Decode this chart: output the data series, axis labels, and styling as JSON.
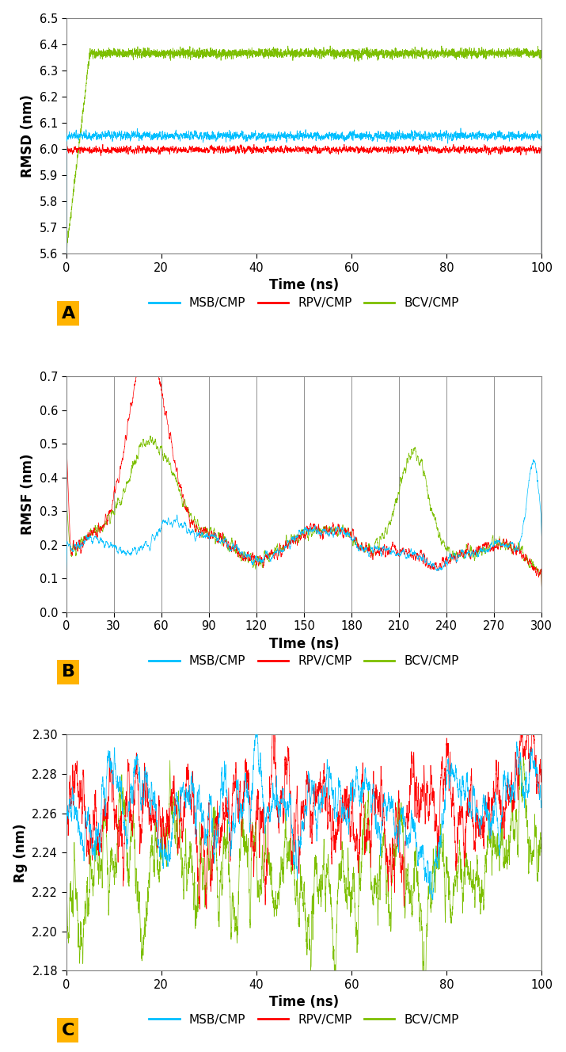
{
  "panel_A": {
    "xlabel": "Time (ns)",
    "ylabel": "RMSD (nm)",
    "xlim": [
      0,
      100
    ],
    "ylim": [
      5.6,
      6.5
    ],
    "yticks": [
      5.6,
      5.7,
      5.8,
      5.9,
      6.0,
      6.1,
      6.2,
      6.3,
      6.4,
      6.5
    ],
    "xticks": [
      0,
      20,
      40,
      60,
      80,
      100
    ],
    "blue_mean": 6.05,
    "blue_noise": 0.025,
    "red_mean": 5.997,
    "red_noise": 0.02,
    "green_start": 5.6,
    "green_plateau": 6.365,
    "green_rise_end": 5,
    "green_noise": 0.018,
    "n_points": 10000,
    "label_A": "A"
  },
  "panel_B": {
    "xlabel": "TIme (ns)",
    "ylabel": "RMSF (nm)",
    "xlim": [
      0,
      300
    ],
    "ylim": [
      0,
      0.7
    ],
    "yticks": [
      0,
      0.1,
      0.2,
      0.3,
      0.4,
      0.5,
      0.6,
      0.7
    ],
    "xticks": [
      0,
      30,
      60,
      90,
      120,
      150,
      180,
      210,
      240,
      270,
      300
    ],
    "n_points": 3000,
    "label_B": "B",
    "vlines": [
      30,
      60,
      90,
      120,
      150,
      180,
      210,
      240,
      270,
      300
    ]
  },
  "panel_C": {
    "xlabel": "Time (ns)",
    "ylabel": "Rg (nm)",
    "xlim": [
      0,
      100
    ],
    "ylim": [
      2.18,
      2.3
    ],
    "yticks": [
      2.18,
      2.2,
      2.22,
      2.24,
      2.26,
      2.28,
      2.3
    ],
    "xticks": [
      0,
      20,
      40,
      60,
      80,
      100
    ],
    "blue_mean": 2.258,
    "blue_noise": 0.01,
    "red_mean": 2.252,
    "red_noise": 0.014,
    "green_mean": 2.232,
    "green_noise": 0.012,
    "n_points": 10000,
    "label_C": "C"
  },
  "colors": {
    "blue": "#00BFFF",
    "red": "#FF0000",
    "green": "#7CBF00",
    "label_bg": "#FFB300",
    "spine": "#808080"
  },
  "legend_labels": [
    "MSB/CMP",
    "RPV/CMP",
    "BCV/CMP"
  ],
  "lw": 0.5,
  "figsize": [
    7.15,
    13.28
  ],
  "dpi": 100
}
